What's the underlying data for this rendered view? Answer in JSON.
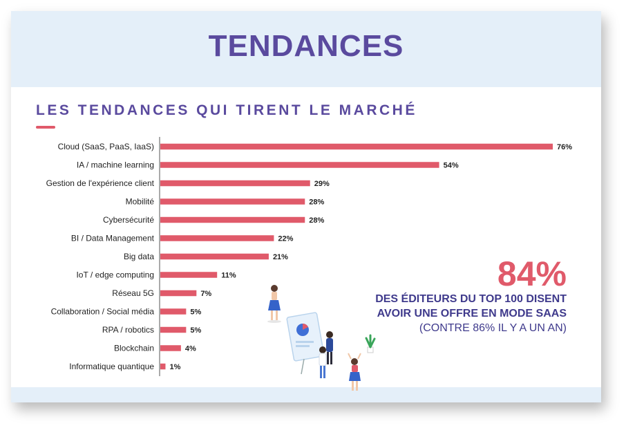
{
  "header": {
    "title": "TENDANCES"
  },
  "section": {
    "title": "LES TENDANCES QUI TIRENT LE MARCHÉ"
  },
  "colors": {
    "bar": "#e05a6a",
    "title": "#5a4a9e",
    "callout_text": "#3f3a8c",
    "header_bg": "#e4eff9"
  },
  "chart_data": {
    "type": "bar",
    "orientation": "horizontal",
    "categories": [
      "Cloud (SaaS, PaaS, IaaS)",
      "IA / machine learning",
      "Gestion de l'expérience client",
      "Mobilité",
      "Cybersécurité",
      "BI / Data Management",
      "Big data",
      "IoT / edge computing",
      "Réseau 5G",
      "Collaboration / Social média",
      "RPA / robotics",
      "Blockchain",
      "Informatique quantique"
    ],
    "values": [
      76,
      54,
      29,
      28,
      28,
      22,
      21,
      11,
      7,
      5,
      5,
      4,
      1
    ],
    "value_labels": [
      "76%",
      "54%",
      "29%",
      "28%",
      "28%",
      "22%",
      "21%",
      "11%",
      "7%",
      "5%",
      "5%",
      "4%",
      "1%"
    ],
    "xlim": [
      0,
      76
    ],
    "grid": false,
    "legend": "none"
  },
  "callout": {
    "value": "84%",
    "line1": "DES ÉDITEURS DU TOP 100 DISENT",
    "line2": "AVOIR UNE OFFRE EN MODE SAAS",
    "line3": "(CONTRE 86% IL Y A UN AN)"
  },
  "illustration": {
    "icon": "people-presentation-icon"
  }
}
